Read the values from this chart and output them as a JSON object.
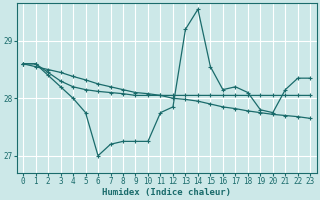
{
  "xlabel": "Humidex (Indice chaleur)",
  "background_color": "#cce8e8",
  "grid_color": "#ffffff",
  "line_color": "#1a6b6b",
  "xlim": [
    -0.5,
    23.5
  ],
  "ylim": [
    26.7,
    29.65
  ],
  "yticks": [
    27,
    28,
    29
  ],
  "xticks": [
    0,
    1,
    2,
    3,
    4,
    5,
    6,
    7,
    8,
    9,
    10,
    11,
    12,
    13,
    14,
    15,
    16,
    17,
    18,
    19,
    20,
    21,
    22,
    23
  ],
  "series1": [
    28.6,
    28.6,
    28.4,
    28.2,
    28.0,
    27.75,
    27.0,
    27.2,
    27.25,
    27.25,
    27.25,
    27.75,
    27.85,
    29.2,
    29.55,
    28.55,
    28.15,
    28.2,
    28.1,
    27.8,
    27.75,
    28.15,
    28.35,
    28.35
  ],
  "series2": [
    28.6,
    28.6,
    28.45,
    28.3,
    28.2,
    28.15,
    28.12,
    28.1,
    28.08,
    28.05,
    28.05,
    28.05,
    28.05,
    28.05,
    28.05,
    28.05,
    28.05,
    28.05,
    28.05,
    28.05,
    28.05,
    28.05,
    28.05,
    28.05
  ],
  "series3": [
    28.6,
    28.55,
    28.5,
    28.45,
    28.38,
    28.32,
    28.25,
    28.2,
    28.15,
    28.1,
    28.08,
    28.05,
    28.0,
    27.98,
    27.95,
    27.9,
    27.85,
    27.82,
    27.78,
    27.75,
    27.72,
    27.7,
    27.68,
    27.65
  ]
}
